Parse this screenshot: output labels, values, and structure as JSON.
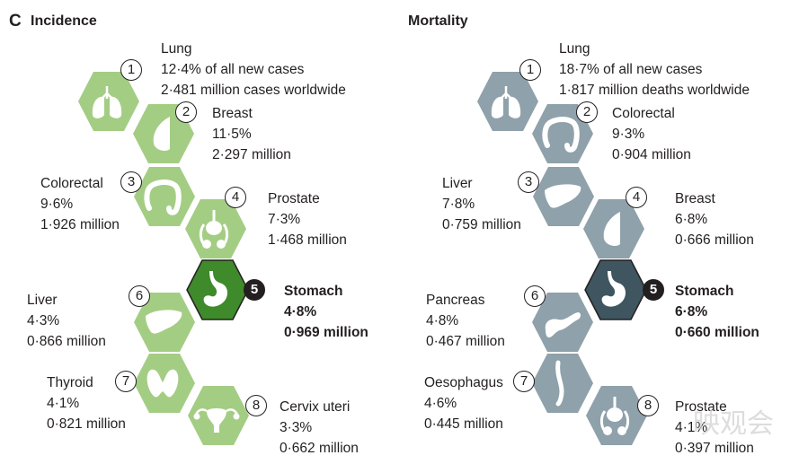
{
  "incidence": {
    "letter": "C",
    "title": "Incidence",
    "colors": {
      "hex": "#a4cd84",
      "highlight": "#3f8a2b",
      "icon": "#ffffff"
    },
    "items": [
      {
        "rank": "1",
        "name": "Lung",
        "pct": "12·4% of all new cases",
        "count": "2·481 million cases worldwide",
        "icon": "lungs-icon"
      },
      {
        "rank": "2",
        "name": "Breast",
        "pct": "11·5%",
        "count": "2·297 million",
        "icon": "breast-icon"
      },
      {
        "rank": "3",
        "name": "Colorectal",
        "pct": "9·6%",
        "count": "1·926 million",
        "icon": "colon-icon"
      },
      {
        "rank": "4",
        "name": "Prostate",
        "pct": "7·3%",
        "count": "1·468 million",
        "icon": "prostate-icon"
      },
      {
        "rank": "5",
        "name": "Stomach",
        "pct": "4·8%",
        "count": "0·969 million",
        "icon": "stomach-icon"
      },
      {
        "rank": "6",
        "name": "Liver",
        "pct": "4·3%",
        "count": "0·866 million",
        "icon": "liver-icon"
      },
      {
        "rank": "7",
        "name": "Thyroid",
        "pct": "4·1%",
        "count": "0·821 million",
        "icon": "thyroid-icon"
      },
      {
        "rank": "8",
        "name": "Cervix uteri",
        "pct": "3·3%",
        "count": "0·662 million",
        "icon": "uterus-icon"
      }
    ]
  },
  "mortality": {
    "title": "Mortality",
    "colors": {
      "hex": "#8fa1aa",
      "highlight": "#3f555f",
      "icon": "#ffffff"
    },
    "items": [
      {
        "rank": "1",
        "name": "Lung",
        "pct": "18·7% of all new cases",
        "count": "1·817 million deaths worldwide",
        "icon": "lungs-icon"
      },
      {
        "rank": "2",
        "name": "Colorectal",
        "pct": "9·3%",
        "count": "0·904 million",
        "icon": "colon-icon"
      },
      {
        "rank": "3",
        "name": "Liver",
        "pct": "7·8%",
        "count": "0·759 million",
        "icon": "liver-icon"
      },
      {
        "rank": "4",
        "name": "Breast",
        "pct": "6·8%",
        "count": "0·666 million",
        "icon": "breast-icon"
      },
      {
        "rank": "5",
        "name": "Stomach",
        "pct": "6·8%",
        "count": "0·660 million",
        "icon": "stomach-icon"
      },
      {
        "rank": "6",
        "name": "Pancreas",
        "pct": "4·8%",
        "count": "0·467 million",
        "icon": "pancreas-icon"
      },
      {
        "rank": "7",
        "name": "Oesophagus",
        "pct": "4·6%",
        "count": "0·445 million",
        "icon": "oesophagus-icon"
      },
      {
        "rank": "8",
        "name": "Prostate",
        "pct": "4·1%",
        "count": "0·397 million",
        "icon": "prostate-icon"
      }
    ]
  },
  "watermark": "映观会"
}
